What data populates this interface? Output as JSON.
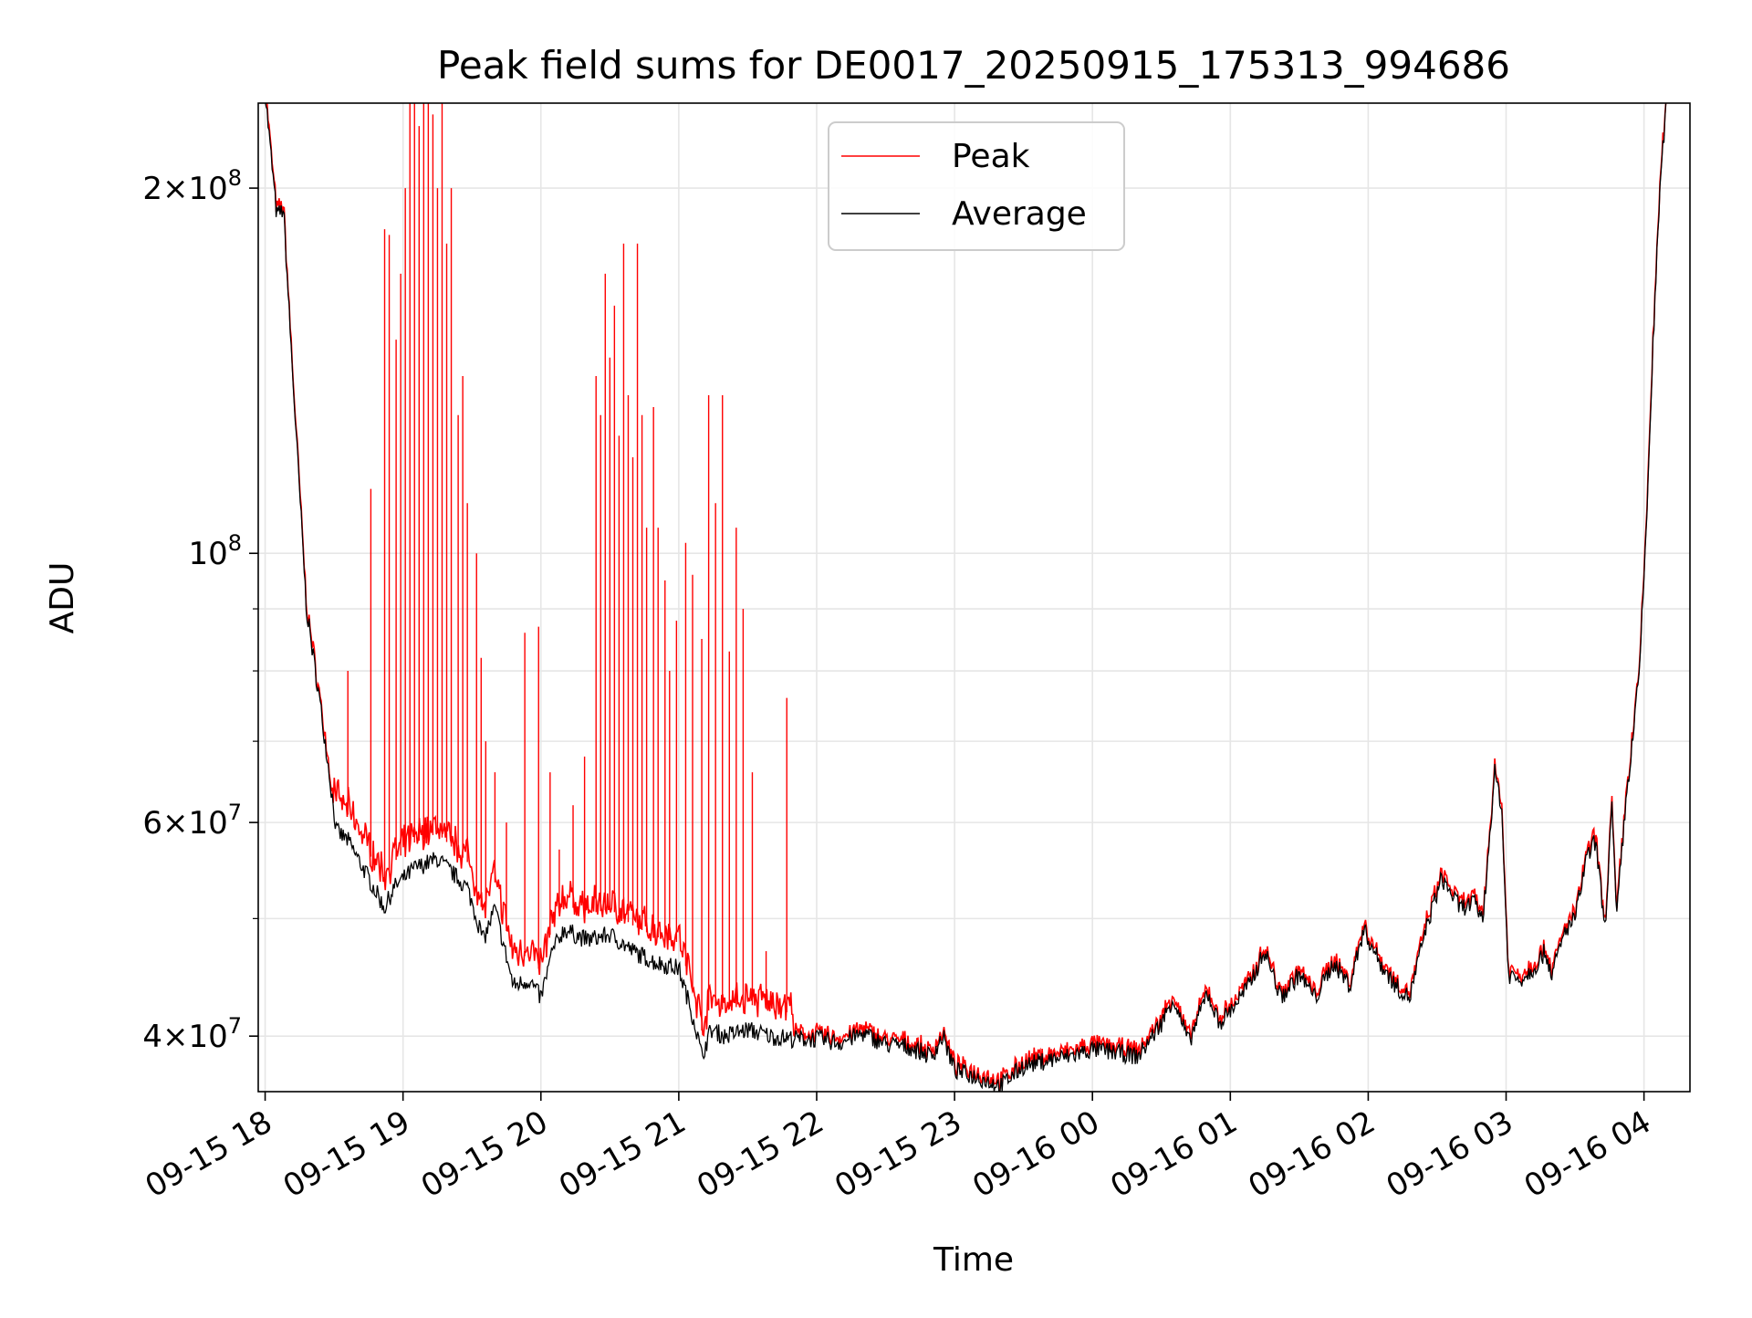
{
  "chart_data": {
    "type": "line",
    "title": "Peak field sums for DE0017_20250915_175313_994686",
    "xlabel": "Time",
    "ylabel": "ADU",
    "yscale": "log",
    "ylim": [
      36000000,
      235000000
    ],
    "xlim": [
      "2025-09-15 17:57",
      "2025-09-16 04:20"
    ],
    "grid": true,
    "legend_position": "top-center",
    "x_ticks": [
      "2025-09-15 18:00",
      "2025-09-15 19:00",
      "2025-09-15 20:00",
      "2025-09-15 21:00",
      "2025-09-15 22:00",
      "2025-09-15 23:00",
      "2025-09-16 00:00",
      "2025-09-16 01:00",
      "2025-09-16 02:00",
      "2025-09-16 03:00",
      "2025-09-16 04:00"
    ],
    "x_tick_labels": [
      "09-15 18",
      "09-15 19",
      "09-15 20",
      "09-15 21",
      "09-15 22",
      "09-15 23",
      "09-16 00",
      "09-16 01",
      "09-16 02",
      "09-16 03",
      "09-16 04"
    ],
    "y_major_ticks": [
      {
        "value": 40000000,
        "mantissa": "4",
        "exp": "7"
      },
      {
        "value": 60000000,
        "mantissa": "6",
        "exp": "7"
      },
      {
        "value": 100000000,
        "mantissa": "",
        "exp": "8"
      },
      {
        "value": 200000000,
        "mantissa": "2",
        "exp": "8"
      }
    ],
    "y_minor_ticks": [
      50000000,
      70000000,
      80000000,
      90000000
    ],
    "series": [
      {
        "name": "Peak",
        "color": "#ff0000",
        "base": [
          [
            "2025-09-15 18:00",
            240000000
          ],
          [
            "2025-09-15 18:05",
            190000000
          ],
          [
            "2025-09-15 18:08",
            192000000
          ],
          [
            "2025-09-15 18:12",
            140000000
          ],
          [
            "2025-09-15 18:18",
            90000000
          ],
          [
            "2025-09-15 18:24",
            75000000
          ],
          [
            "2025-09-15 18:27",
            68000000
          ],
          [
            "2025-09-15 18:31",
            59000000
          ],
          [
            "2025-09-15 18:36",
            58000000
          ],
          [
            "2025-09-15 18:45",
            54000000
          ],
          [
            "2025-09-15 18:52",
            51000000
          ],
          [
            "2025-09-15 18:56",
            53000000
          ],
          [
            "2025-09-15 19:05",
            55000000
          ],
          [
            "2025-09-15 19:15",
            56000000
          ],
          [
            "2025-09-15 19:28",
            53000000
          ],
          [
            "2025-09-15 19:35",
            48000000
          ],
          [
            "2025-09-15 19:40",
            51000000
          ],
          [
            "2025-09-15 19:48",
            44000000
          ],
          [
            "2025-09-15 19:55",
            44500000
          ],
          [
            "2025-09-15 20:00",
            43000000
          ],
          [
            "2025-09-15 20:05",
            47000000
          ],
          [
            "2025-09-15 20:10",
            49000000
          ],
          [
            "2025-09-15 20:20",
            48000000
          ],
          [
            "2025-09-15 20:30",
            48500000
          ],
          [
            "2025-09-15 20:40",
            47000000
          ],
          [
            "2025-09-15 20:50",
            46000000
          ],
          [
            "2025-09-15 21:00",
            45500000
          ],
          [
            "2025-09-15 21:07",
            41000000
          ],
          [
            "2025-09-15 21:10",
            38500000
          ],
          [
            "2025-09-15 21:14",
            40500000
          ],
          [
            "2025-09-15 21:20",
            40000000
          ],
          [
            "2025-09-15 21:30",
            40500000
          ],
          [
            "2025-09-15 21:40",
            40000000
          ],
          [
            "2025-09-15 21:50",
            39800000
          ],
          [
            "2025-09-15 22:00",
            39800000
          ],
          [
            "2025-09-15 22:10",
            39500000
          ],
          [
            "2025-09-15 22:20",
            40200000
          ],
          [
            "2025-09-15 22:30",
            39400000
          ],
          [
            "2025-09-15 22:40",
            39200000
          ],
          [
            "2025-09-15 22:50",
            38500000
          ],
          [
            "2025-09-15 22:55",
            40000000
          ],
          [
            "2025-09-15 23:00",
            37500000
          ],
          [
            "2025-09-15 23:10",
            37000000
          ],
          [
            "2025-09-15 23:20",
            36400000
          ],
          [
            "2025-09-15 23:30",
            37800000
          ],
          [
            "2025-09-15 23:40",
            38200000
          ],
          [
            "2025-09-15 23:50",
            38500000
          ],
          [
            "2025-09-16 00:00",
            39000000
          ],
          [
            "2025-09-16 00:10",
            38800000
          ],
          [
            "2025-09-16 00:20",
            38500000
          ],
          [
            "2025-09-16 00:30",
            41000000
          ],
          [
            "2025-09-16 00:35",
            43000000
          ],
          [
            "2025-09-16 00:42",
            39500000
          ],
          [
            "2025-09-16 00:50",
            43500000
          ],
          [
            "2025-09-16 00:55",
            41000000
          ],
          [
            "2025-09-16 01:00",
            42000000
          ],
          [
            "2025-09-16 01:08",
            44000000
          ],
          [
            "2025-09-16 01:15",
            47000000
          ],
          [
            "2025-09-16 01:22",
            43000000
          ],
          [
            "2025-09-16 01:30",
            45000000
          ],
          [
            "2025-09-16 01:37",
            43000000
          ],
          [
            "2025-09-16 01:45",
            46000000
          ],
          [
            "2025-09-16 01:52",
            44000000
          ],
          [
            "2025-09-16 01:58",
            49000000
          ],
          [
            "2025-09-16 02:05",
            46000000
          ],
          [
            "2025-09-16 02:12",
            44000000
          ],
          [
            "2025-09-16 02:18",
            43000000
          ],
          [
            "2025-09-16 02:25",
            49000000
          ],
          [
            "2025-09-16 02:32",
            54000000
          ],
          [
            "2025-09-16 02:40",
            51000000
          ],
          [
            "2025-09-16 02:46",
            51500000
          ],
          [
            "2025-09-16 02:50",
            50000000
          ],
          [
            "2025-09-16 02:55",
            66000000
          ],
          [
            "2025-09-16 02:58",
            62000000
          ],
          [
            "2025-09-16 03:01",
            45000000
          ],
          [
            "2025-09-16 03:06",
            44500000
          ],
          [
            "2025-09-16 03:12",
            45500000
          ],
          [
            "2025-09-16 03:17",
            47000000
          ],
          [
            "2025-09-16 03:20",
            45000000
          ],
          [
            "2025-09-16 03:26",
            49000000
          ],
          [
            "2025-09-16 03:30",
            50000000
          ],
          [
            "2025-09-16 03:35",
            56000000
          ],
          [
            "2025-09-16 03:39",
            58000000
          ],
          [
            "2025-09-16 03:43",
            49000000
          ],
          [
            "2025-09-16 03:46",
            62000000
          ],
          [
            "2025-09-16 03:48",
            50000000
          ],
          [
            "2025-09-16 03:52",
            62000000
          ],
          [
            "2025-09-16 03:55",
            70000000
          ],
          [
            "2025-09-16 03:58",
            80000000
          ],
          [
            "2025-09-16 04:01",
            105000000
          ],
          [
            "2025-09-16 04:04",
            150000000
          ],
          [
            "2025-09-16 04:07",
            200000000
          ],
          [
            "2025-09-16 04:10",
            240000000
          ]
        ],
        "spikes": [
          [
            "2025-09-15 18:36",
            80000000
          ],
          [
            "2025-09-15 18:46",
            113000000
          ],
          [
            "2025-09-15 18:52",
            185000000
          ],
          [
            "2025-09-15 18:54",
            183000000
          ],
          [
            "2025-09-15 18:57",
            150000000
          ],
          [
            "2025-09-15 18:59",
            170000000
          ],
          [
            "2025-09-15 19:01",
            200000000
          ],
          [
            "2025-09-15 19:03",
            240000000
          ],
          [
            "2025-09-15 19:05",
            235000000
          ],
          [
            "2025-09-15 19:07",
            225000000
          ],
          [
            "2025-09-15 19:09",
            235000000
          ],
          [
            "2025-09-15 19:11",
            240000000
          ],
          [
            "2025-09-15 19:13",
            230000000
          ],
          [
            "2025-09-15 19:15",
            200000000
          ],
          [
            "2025-09-15 19:17",
            240000000
          ],
          [
            "2025-09-15 19:19",
            180000000
          ],
          [
            "2025-09-15 19:21",
            200000000
          ],
          [
            "2025-09-15 19:24",
            130000000
          ],
          [
            "2025-09-15 19:26",
            140000000
          ],
          [
            "2025-09-15 19:28",
            110000000
          ],
          [
            "2025-09-15 19:32",
            100000000
          ],
          [
            "2025-09-15 19:34",
            82000000
          ],
          [
            "2025-09-15 19:36",
            70000000
          ],
          [
            "2025-09-15 19:40",
            66000000
          ],
          [
            "2025-09-15 19:45",
            60000000
          ],
          [
            "2025-09-15 19:53",
            86000000
          ],
          [
            "2025-09-15 19:59",
            87000000
          ],
          [
            "2025-09-15 20:04",
            66000000
          ],
          [
            "2025-09-15 20:08",
            57000000
          ],
          [
            "2025-09-15 20:14",
            62000000
          ],
          [
            "2025-09-15 20:19",
            68000000
          ],
          [
            "2025-09-15 20:24",
            140000000
          ],
          [
            "2025-09-15 20:26",
            130000000
          ],
          [
            "2025-09-15 20:28",
            170000000
          ],
          [
            "2025-09-15 20:30",
            145000000
          ],
          [
            "2025-09-15 20:32",
            160000000
          ],
          [
            "2025-09-15 20:34",
            125000000
          ],
          [
            "2025-09-15 20:36",
            180000000
          ],
          [
            "2025-09-15 20:38",
            135000000
          ],
          [
            "2025-09-15 20:40",
            120000000
          ],
          [
            "2025-09-15 20:42",
            180000000
          ],
          [
            "2025-09-15 20:44",
            130000000
          ],
          [
            "2025-09-15 20:46",
            105000000
          ],
          [
            "2025-09-15 20:49",
            132000000
          ],
          [
            "2025-09-15 20:51",
            105000000
          ],
          [
            "2025-09-15 20:54",
            95000000
          ],
          [
            "2025-09-15 20:56",
            80000000
          ],
          [
            "2025-09-15 20:59",
            88000000
          ],
          [
            "2025-09-15 21:03",
            102000000
          ],
          [
            "2025-09-15 21:06",
            96000000
          ],
          [
            "2025-09-15 21:10",
            85000000
          ],
          [
            "2025-09-15 21:13",
            135000000
          ],
          [
            "2025-09-15 21:16",
            110000000
          ],
          [
            "2025-09-15 21:19",
            135000000
          ],
          [
            "2025-09-15 21:22",
            83000000
          ],
          [
            "2025-09-15 21:25",
            105000000
          ],
          [
            "2025-09-15 21:28",
            90000000
          ],
          [
            "2025-09-15 21:32",
            66000000
          ],
          [
            "2025-09-15 21:38",
            47000000
          ],
          [
            "2025-09-15 21:47",
            76000000
          ]
        ]
      },
      {
        "name": "Average",
        "color": "#000000"
      }
    ]
  }
}
